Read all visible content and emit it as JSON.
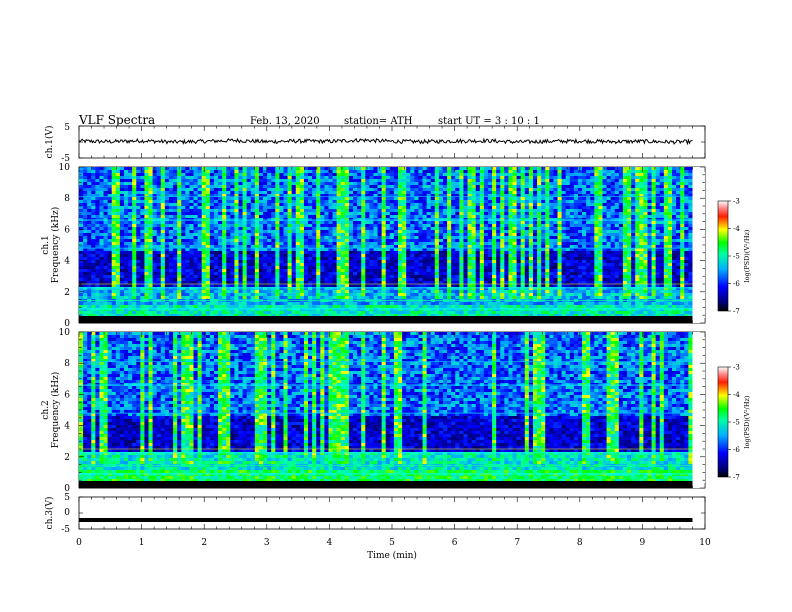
{
  "header": {
    "title": "VLF  Spectra",
    "date": "Feb. 13, 2020",
    "station": "station= ATH",
    "start": "start  UT  =   3  : 10 : 1"
  },
  "chart_data": [
    {
      "type": "line",
      "ylabel": "ch.1(V)",
      "ylim": [
        -5,
        5
      ],
      "y_ticks": [
        "5",
        "-5"
      ],
      "xlim": [
        0,
        10
      ],
      "x": [
        0,
        0.5,
        1,
        1.5,
        2,
        2.5,
        3,
        3.5,
        4,
        4.5,
        5,
        5.5,
        6,
        6.5,
        7,
        7.5,
        8,
        8.5,
        9,
        9.5,
        9.8
      ],
      "y": [
        0.3,
        0.1,
        0.4,
        0.0,
        0.2,
        0.5,
        0.1,
        0.3,
        0.2,
        0.6,
        0.2,
        0.1,
        0.3,
        0.4,
        0.0,
        0.2,
        0.3,
        0.1,
        0.2,
        0.0,
        0.1
      ]
    },
    {
      "type": "heatmap",
      "ylabel": "ch.1\nFrequency  (kHz)",
      "y_ticks": [
        "10",
        "8",
        "6",
        "4",
        "2",
        "0"
      ],
      "ylim": [
        0,
        10
      ],
      "xlim": [
        0,
        10
      ],
      "colorbar": {
        "label": "log(PSD)(V²/Hz)",
        "ticks": [
          "-3",
          "-4",
          "-5",
          "-6",
          "-7"
        ],
        "range": [
          -7,
          -3
        ]
      }
    },
    {
      "type": "heatmap",
      "ylabel": "ch.2\nFrequency  (kHz)",
      "y_ticks": [
        "10",
        "8",
        "6",
        "4",
        "2",
        "0"
      ],
      "ylim": [
        0,
        10
      ],
      "xlim": [
        0,
        10
      ],
      "colorbar": {
        "label": "log(PSD)(V²/Hz)",
        "ticks": [
          "-3",
          "-4",
          "-5",
          "-6",
          "-7"
        ],
        "range": [
          -7,
          -3
        ]
      }
    },
    {
      "type": "line",
      "ylabel": "ch.3(V)",
      "ylim": [
        -5,
        5
      ],
      "y_ticks": [
        "5",
        "0",
        "-5"
      ],
      "xlim": [
        0,
        10
      ],
      "x": [
        0,
        9.8
      ],
      "y": [
        -2.2,
        -2.2
      ]
    }
  ],
  "xaxis": {
    "label": "Time  (min)",
    "ticks": [
      "0",
      "1",
      "2",
      "3",
      "4",
      "5",
      "6",
      "7",
      "8",
      "9",
      "10"
    ]
  }
}
